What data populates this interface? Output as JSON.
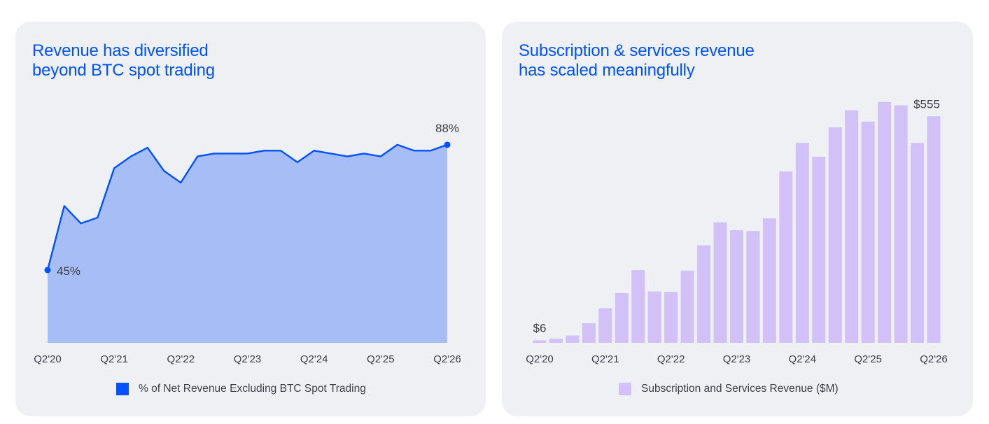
{
  "left_panel": {
    "title_lines": [
      "Revenue has diversified",
      "beyond BTC spot trading"
    ],
    "legend_label": "% of Net Revenue Excluding BTC Spot Trading",
    "start_label": "45%",
    "end_label": "88%"
  },
  "right_panel": {
    "title_lines": [
      "Subscription & services revenue",
      "has scaled meaningfully"
    ],
    "legend_label": "Subscription and Services Revenue ($M)",
    "start_label": "$6",
    "end_label": "$555"
  },
  "colors": {
    "line": "#0052ff",
    "area": "#a6bdf5",
    "bar": "#d1c1f6",
    "legend_left": "#0052ff",
    "legend_right": "#d1c1f6"
  },
  "chart_data": [
    {
      "type": "area",
      "title": "Revenue has diversified beyond BTC spot trading",
      "x": [
        "Q2'20",
        "Q3'20",
        "Q4'20",
        "Q1'21",
        "Q2'21",
        "Q3'21",
        "Q4'21",
        "Q1'22",
        "Q2'22",
        "Q3'22",
        "Q4'22",
        "Q1'23",
        "Q2'23",
        "Q3'23",
        "Q4'23",
        "Q1'24",
        "Q2'24",
        "Q3'24",
        "Q4'24",
        "Q1'25",
        "Q2'25",
        "Q3'25",
        "Q4'25",
        "Q1'26",
        "Q2'26"
      ],
      "tick_labels": [
        "Q2'20",
        "Q2'21",
        "Q2'22",
        "Q2'23",
        "Q2'24",
        "Q2'25",
        "Q2'26"
      ],
      "series": [
        {
          "name": "% of Net Revenue Excluding BTC Spot Trading",
          "values": [
            45,
            67,
            61,
            63,
            80,
            84,
            87,
            79,
            75,
            84,
            85,
            85,
            85,
            86,
            86,
            82,
            86,
            85,
            84,
            85,
            84,
            88,
            86,
            86,
            88
          ]
        }
      ],
      "ylim": [
        20,
        100
      ],
      "grid": false,
      "legend_position": "bottom"
    },
    {
      "type": "bar",
      "title": "Subscription & services revenue has scaled meaningfully",
      "categories": [
        "Q2'20",
        "Q3'20",
        "Q4'20",
        "Q1'21",
        "Q2'21",
        "Q3'21",
        "Q4'21",
        "Q1'22",
        "Q2'22",
        "Q3'22",
        "Q4'22",
        "Q1'23",
        "Q2'23",
        "Q3'23",
        "Q4'23",
        "Q1'24",
        "Q2'24",
        "Q3'24",
        "Q4'24",
        "Q1'25",
        "Q2'25",
        "Q3'25",
        "Q4'25",
        "Q1'26",
        "Q2'26"
      ],
      "tick_labels": [
        "Q2'20",
        "Q2'21",
        "Q2'22",
        "Q2'23",
        "Q2'24",
        "Q2'25",
        "Q2'26"
      ],
      "series": [
        {
          "name": "Subscription and Services Revenue ($M)",
          "values": [
            6,
            10,
            18,
            48,
            85,
            122,
            178,
            126,
            125,
            177,
            239,
            295,
            276,
            274,
            305,
            420,
            490,
            456,
            528,
            570,
            542,
            590,
            582,
            490,
            555
          ]
        }
      ],
      "ylim": [
        0,
        600
      ],
      "grid": false,
      "legend_position": "bottom"
    }
  ]
}
